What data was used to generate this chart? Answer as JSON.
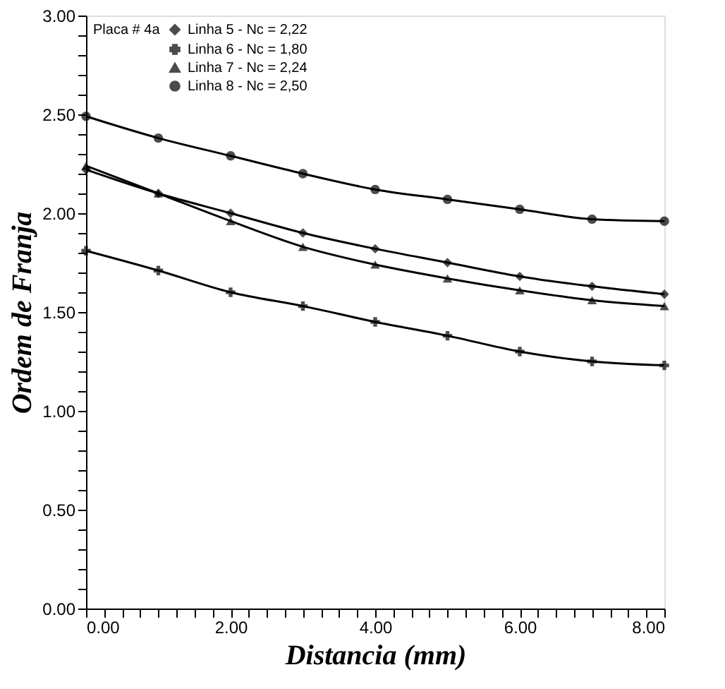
{
  "chart_data": {
    "type": "line",
    "xlabel": "Distancia  (mm)",
    "ylabel": "Ordem  de  Franja",
    "legend_title": "Placa # 4a",
    "legend": "top left",
    "grid": false,
    "x": [
      0,
      1,
      2,
      3,
      4,
      5,
      6,
      7,
      8
    ],
    "series": [
      {
        "name": "Linha 5   -   Nc = 2,22",
        "color": "#000000",
        "marker": "diamond",
        "values": [
          2.22,
          2.1,
          2.0,
          1.9,
          1.82,
          1.75,
          1.68,
          1.63,
          1.59
        ]
      },
      {
        "name": "Linha 6   -   Nc = 1,80",
        "color": "#000000",
        "marker": "cross",
        "values": [
          1.81,
          1.71,
          1.6,
          1.53,
          1.45,
          1.38,
          1.3,
          1.25,
          1.23
        ]
      },
      {
        "name": "Linha 7   -   Nc = 2,24",
        "color": "#000000",
        "marker": "triangle",
        "values": [
          2.24,
          2.1,
          1.96,
          1.83,
          1.74,
          1.67,
          1.61,
          1.56,
          1.53
        ]
      },
      {
        "name": "Linha 8   -   Nc = 2,50",
        "color": "#000000",
        "marker": "circle",
        "values": [
          2.49,
          2.38,
          2.29,
          2.2,
          2.12,
          2.07,
          2.02,
          1.97,
          1.96
        ]
      }
    ],
    "xlim": [
      0,
      8
    ],
    "ylim": [
      0,
      3
    ],
    "xticks": [
      {
        "value": 0,
        "label": "0.00"
      },
      {
        "value": 0.25,
        "label": null
      },
      {
        "value": 0.5,
        "label": null
      },
      {
        "value": 0.75,
        "label": null
      },
      {
        "value": 1,
        "label": null
      },
      {
        "value": 1.25,
        "label": null
      },
      {
        "value": 1.5,
        "label": null
      },
      {
        "value": 1.75,
        "label": null
      },
      {
        "value": 2,
        "label": "2.00"
      },
      {
        "value": 2.25,
        "label": null
      },
      {
        "value": 2.5,
        "label": null
      },
      {
        "value": 2.75,
        "label": null
      },
      {
        "value": 3,
        "label": null
      },
      {
        "value": 3.25,
        "label": null
      },
      {
        "value": 3.5,
        "label": null
      },
      {
        "value": 3.75,
        "label": null
      },
      {
        "value": 4,
        "label": "4.00"
      },
      {
        "value": 4.25,
        "label": null
      },
      {
        "value": 4.5,
        "label": null
      },
      {
        "value": 4.75,
        "label": null
      },
      {
        "value": 5,
        "label": null
      },
      {
        "value": 5.25,
        "label": null
      },
      {
        "value": 5.5,
        "label": null
      },
      {
        "value": 5.75,
        "label": null
      },
      {
        "value": 6,
        "label": "6.00"
      },
      {
        "value": 6.25,
        "label": null
      },
      {
        "value": 6.5,
        "label": null
      },
      {
        "value": 6.75,
        "label": null
      },
      {
        "value": 7,
        "label": null
      },
      {
        "value": 7.25,
        "label": null
      },
      {
        "value": 7.5,
        "label": null
      },
      {
        "value": 7.75,
        "label": null
      },
      {
        "value": 8,
        "label": "8.00"
      }
    ],
    "yticks": [
      {
        "value": 0,
        "label": "0.00"
      },
      {
        "value": 0.1,
        "label": null
      },
      {
        "value": 0.2,
        "label": null
      },
      {
        "value": 0.3,
        "label": null
      },
      {
        "value": 0.4,
        "label": null
      },
      {
        "value": 0.5,
        "label": "0.50"
      },
      {
        "value": 0.6,
        "label": null
      },
      {
        "value": 0.7,
        "label": null
      },
      {
        "value": 0.8,
        "label": null
      },
      {
        "value": 0.9,
        "label": null
      },
      {
        "value": 1,
        "label": "1.00"
      },
      {
        "value": 1.1,
        "label": null
      },
      {
        "value": 1.2,
        "label": null
      },
      {
        "value": 1.3,
        "label": null
      },
      {
        "value": 1.4,
        "label": null
      },
      {
        "value": 1.5,
        "label": "1.50"
      },
      {
        "value": 1.6,
        "label": null
      },
      {
        "value": 1.7,
        "label": null
      },
      {
        "value": 1.8,
        "label": null
      },
      {
        "value": 1.9,
        "label": null
      },
      {
        "value": 2,
        "label": "2.00"
      },
      {
        "value": 2.1,
        "label": null
      },
      {
        "value": 2.2,
        "label": null
      },
      {
        "value": 2.3,
        "label": null
      },
      {
        "value": 2.4,
        "label": null
      },
      {
        "value": 2.5,
        "label": "2.50"
      },
      {
        "value": 2.6,
        "label": null
      },
      {
        "value": 2.7,
        "label": null
      },
      {
        "value": 2.8,
        "label": null
      },
      {
        "value": 2.9,
        "label": null
      },
      {
        "value": 3,
        "label": "3.00"
      }
    ]
  }
}
